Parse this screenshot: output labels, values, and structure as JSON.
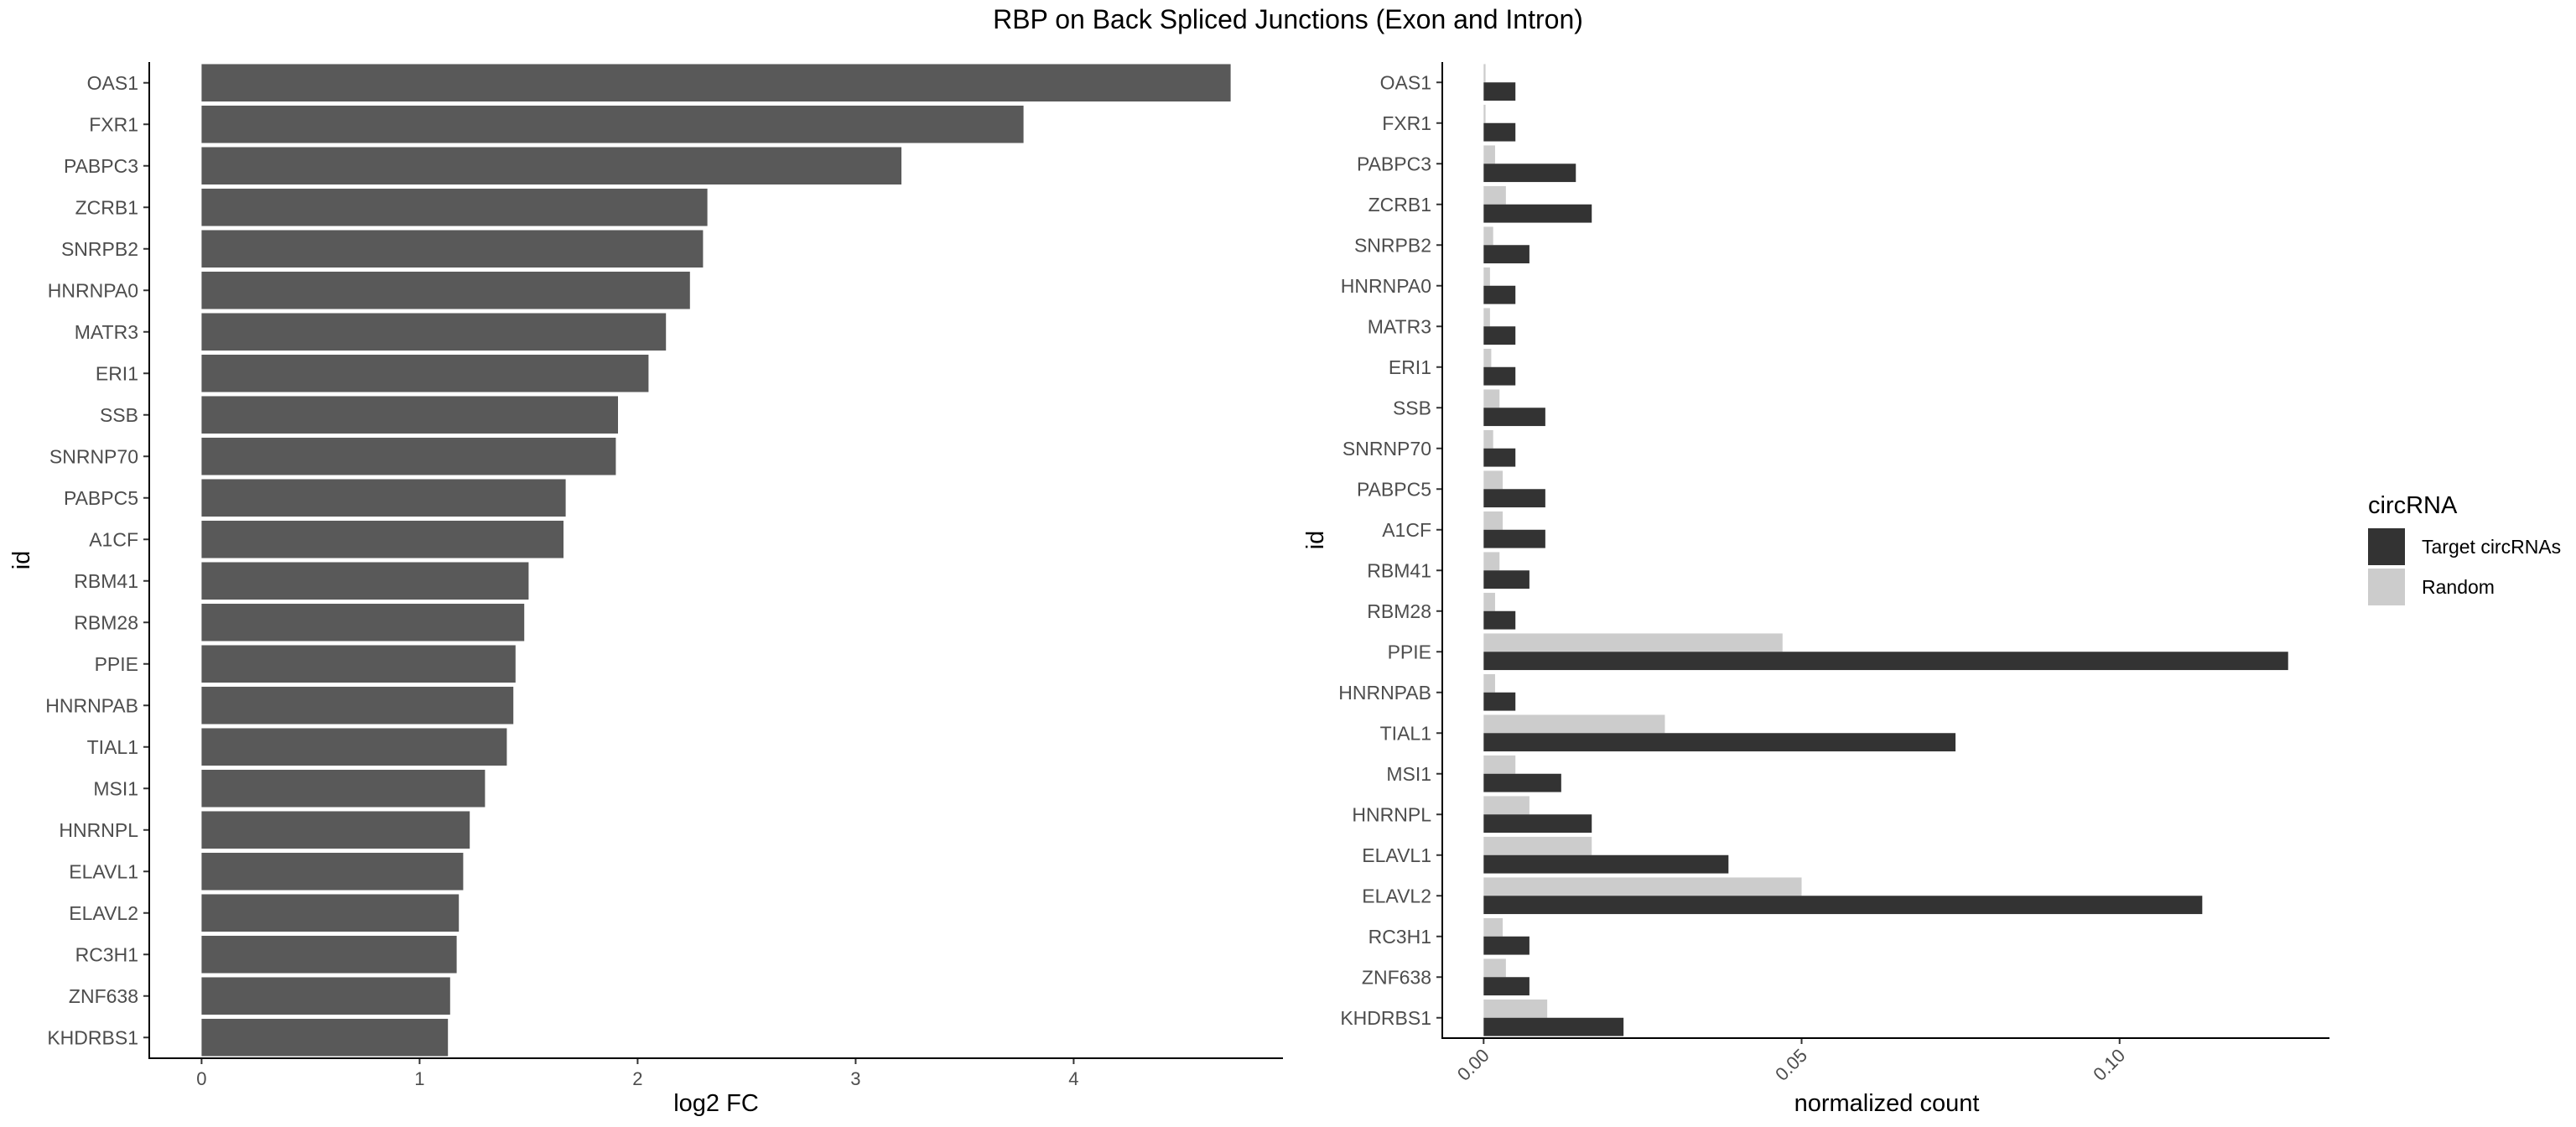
{
  "title": "RBP on Back Spliced Junctions (Exon and Intron)",
  "colors": {
    "left_bar": "#595959",
    "target": "#333333",
    "random": "#cccccc",
    "axis": "#000000",
    "tick_text": "#4d4d4d"
  },
  "chart_data": [
    {
      "type": "bar",
      "orientation": "horizontal",
      "categories": [
        "OAS1",
        "FXR1",
        "PABPC3",
        "ZCRB1",
        "SNRPB2",
        "HNRNPA0",
        "MATR3",
        "ERI1",
        "SSB",
        "SNRNP70",
        "PABPC5",
        "A1CF",
        "RBM41",
        "RBM28",
        "PPIE",
        "HNRNPAB",
        "TIAL1",
        "MSI1",
        "HNRNPL",
        "ELAVL1",
        "ELAVL2",
        "RC3H1",
        "ZNF638",
        "KHDRBS1"
      ],
      "values": [
        4.72,
        3.77,
        3.21,
        2.32,
        2.3,
        2.24,
        2.13,
        2.05,
        1.91,
        1.9,
        1.67,
        1.66,
        1.5,
        1.48,
        1.44,
        1.43,
        1.4,
        1.3,
        1.23,
        1.2,
        1.18,
        1.17,
        1.14,
        1.13
      ],
      "xlabel": "log2 FC",
      "ylabel": "id",
      "xlim": [
        -0.24,
        4.96
      ],
      "xticks": [
        "0",
        "1",
        "2",
        "3",
        "4"
      ],
      "grid": false
    },
    {
      "type": "bar",
      "orientation": "horizontal",
      "categories": [
        "OAS1",
        "FXR1",
        "PABPC3",
        "ZCRB1",
        "SNRPB2",
        "HNRNPA0",
        "MATR3",
        "ERI1",
        "SSB",
        "SNRNP70",
        "PABPC5",
        "A1CF",
        "RBM41",
        "RBM28",
        "PPIE",
        "HNRNPAB",
        "TIAL1",
        "MSI1",
        "HNRNPL",
        "ELAVL1",
        "ELAVL2",
        "RC3H1",
        "ZNF638",
        "KHDRBS1"
      ],
      "series": [
        {
          "name": "Target circRNAs",
          "values": [
            0.005,
            0.005,
            0.0145,
            0.017,
            0.0072,
            0.005,
            0.005,
            0.005,
            0.0097,
            0.005,
            0.0097,
            0.0097,
            0.0072,
            0.005,
            0.1265,
            0.005,
            0.0742,
            0.0122,
            0.017,
            0.0385,
            0.113,
            0.0072,
            0.0072,
            0.022
          ]
        },
        {
          "name": "Random",
          "values": [
            0.0003,
            0.0003,
            0.0018,
            0.0035,
            0.0015,
            0.001,
            0.001,
            0.0012,
            0.0025,
            0.0015,
            0.003,
            0.003,
            0.0025,
            0.0018,
            0.047,
            0.0018,
            0.0285,
            0.005,
            0.0072,
            0.017,
            0.05,
            0.003,
            0.0035,
            0.01
          ]
        }
      ],
      "xlabel": "normalized count",
      "ylabel": "id",
      "xlim": [
        -0.0065,
        0.133
      ],
      "xticks": [
        "0.00",
        "0.05",
        "0.10"
      ],
      "legend": {
        "title": "circRNA",
        "position": "right"
      },
      "grid": false
    }
  ]
}
